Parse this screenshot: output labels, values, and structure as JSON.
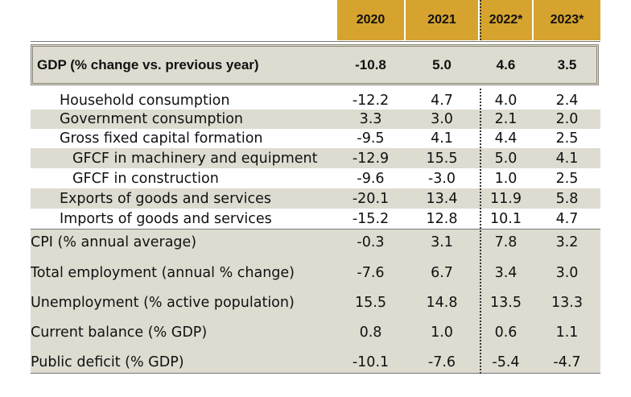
{
  "headers": [
    "2020",
    "2021",
    "2022*",
    "2023*"
  ],
  "gdp": {
    "label": "GDP (% change vs. previous year)",
    "values": [
      "-10.8",
      "5.0",
      "4.6",
      "3.5"
    ]
  },
  "components": [
    {
      "label": "Household consumption",
      "values": [
        "-12.2",
        "4.7",
        "4.0",
        "2.4"
      ]
    },
    {
      "label": "Government consumption",
      "values": [
        "3.3",
        "3.0",
        "2.1",
        "2.0"
      ]
    },
    {
      "label": "Gross fixed capital formation",
      "values": [
        "-9.5",
        "4.1",
        "4.4",
        "2.5"
      ]
    },
    {
      "label": "GFCF in machinery and equipment",
      "values": [
        "-12.9",
        "15.5",
        "5.0",
        "4.1"
      ]
    },
    {
      "label": "GFCF in construction",
      "values": [
        "-9.6",
        "-3.0",
        "1.0",
        "2.5"
      ]
    },
    {
      "label": "Exports of goods and services",
      "values": [
        "-20.1",
        "13.4",
        "11.9",
        "5.8"
      ]
    },
    {
      "label": "Imports of goods and services",
      "values": [
        "-15.2",
        "12.8",
        "10.1",
        "4.7"
      ]
    }
  ],
  "indicators": [
    {
      "label": "CPI (% annual average)",
      "values": [
        "-0.3",
        "3.1",
        "7.8",
        "3.2"
      ]
    },
    {
      "label": "Total employment (annual % change)",
      "values": [
        "-7.6",
        "6.7",
        "3.4",
        "3.0"
      ]
    },
    {
      "label": "Unemployment (% active population)",
      "values": [
        "15.5",
        "14.8",
        "13.5",
        "13.3"
      ]
    },
    {
      "label": "Current balance (% GDP)",
      "values": [
        "0.8",
        "1.0",
        "0.6",
        "1.1"
      ]
    },
    {
      "label": "Public deficit (% GDP)",
      "values": [
        "-10.1",
        "-7.6",
        "-5.4",
        "-4.7"
      ]
    }
  ],
  "colors": {
    "header": "#d6a42e",
    "shade": "#dedbd0",
    "border": "#8a8778"
  }
}
